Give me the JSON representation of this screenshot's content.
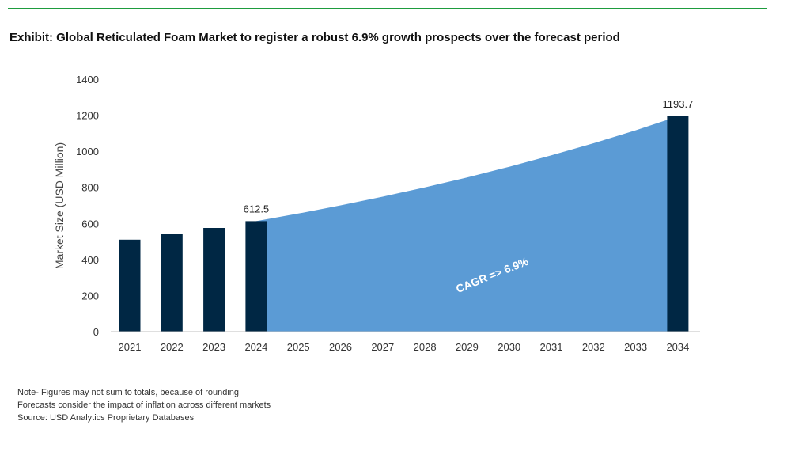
{
  "title": "Exhibit: Global Reticulated Foam Market to register a robust 6.9% growth prospects over the forecast period",
  "notes": [
    "Note- Figures may not sum to totals, because of rounding",
    "Forecasts consider the impact of inflation across different markets",
    "Source: USD Analytics Proprietary Databases"
  ],
  "colors": {
    "bar": "#002744",
    "area": "#5b9bd5",
    "header_rule": "#1e9c3e",
    "axis_text": "#333333"
  },
  "chart_data": {
    "type": "bar",
    "categories": [
      "2021",
      "2022",
      "2023",
      "2024",
      "2025",
      "2026",
      "2027",
      "2028",
      "2029",
      "2030",
      "2031",
      "2032",
      "2033",
      "2034"
    ],
    "series": [
      {
        "type": "bar",
        "values": [
          510,
          540,
          575,
          612.5,
          null,
          null,
          null,
          null,
          null,
          null,
          null,
          null,
          null,
          1193.7
        ]
      },
      {
        "type": "area",
        "values": [
          null,
          null,
          null,
          612.5,
          654.8,
          700.0,
          748.3,
          799.9,
          855.1,
          914.1,
          977.2,
          1044.6,
          1116.7,
          1193.7
        ]
      }
    ],
    "data_labels": [
      {
        "category": "2024",
        "text": "612.5"
      },
      {
        "category": "2034",
        "text": "1193.7"
      }
    ],
    "annotation": "CAGR =>  6.9%",
    "ylabel": "Market Size (USD Million)",
    "xlabel": "",
    "ylim": [
      0,
      1400
    ],
    "yticks": [
      0,
      200,
      400,
      600,
      800,
      1000,
      1200,
      1400
    ],
    "grid": false,
    "legend": "none"
  }
}
